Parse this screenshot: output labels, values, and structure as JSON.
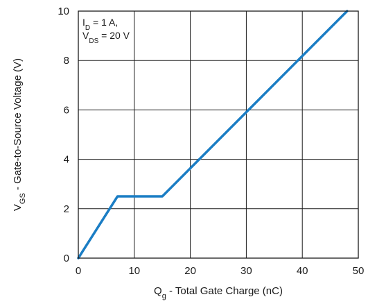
{
  "chart_data": {
    "type": "line",
    "xlabel": {
      "main": "Q",
      "sub": "g",
      "rest": " - Total Gate Charge (nC)"
    },
    "ylabel": {
      "main": "V",
      "sub": "GS",
      "rest": " - Gate-to-Source Voltage (V)"
    },
    "xlim": [
      0,
      50
    ],
    "ylim": [
      0,
      10
    ],
    "xticks": [
      0,
      10,
      20,
      30,
      40,
      50
    ],
    "yticks": [
      0,
      2,
      4,
      6,
      8,
      10
    ],
    "grid": true,
    "line_color": "#1a7dc4",
    "series": [
      {
        "x": [
          0,
          7,
          15,
          48
        ],
        "y": [
          0,
          2.5,
          2.5,
          10
        ]
      }
    ],
    "annotation": [
      {
        "main": "I",
        "sub": "D",
        "rest": " = 1 A,"
      },
      {
        "main": "V",
        "sub": "DS",
        "rest": " = 20 V"
      }
    ]
  }
}
